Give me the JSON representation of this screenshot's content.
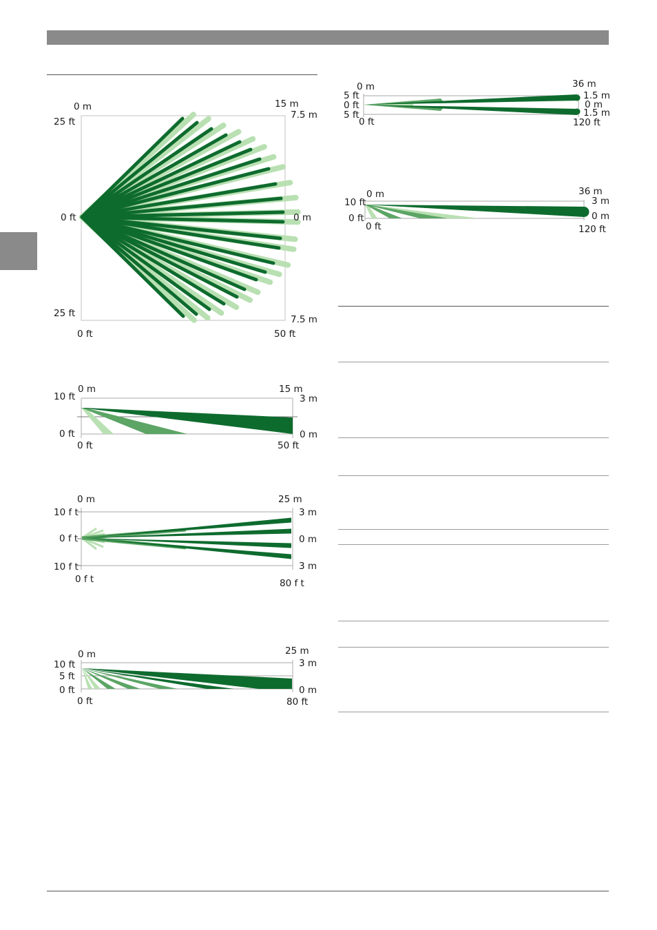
{
  "colors": {
    "dark_green": "#0e6b2e",
    "mid_green": "#5ca565",
    "light_green": "#b9e0b2",
    "header_grey": "#8a8a8a",
    "rule_grey": "#9a9a9a"
  },
  "figures": {
    "wide": {
      "top_left_m": "0 m",
      "top_right_m": "15 m",
      "left_top_ft": "25 ft",
      "left_mid_ft": "0 ft",
      "left_bot_ft": "25 ft",
      "right_top_m": "7.5 m",
      "right_mid_m": "0 m",
      "right_bot_m": "7.5 m",
      "bottom_left_ft": "0 ft",
      "bottom_right_ft": "50 ft"
    },
    "side15": {
      "top_left_m": "0 m",
      "top_right_m": "15 m",
      "left_top_ft": "10 ft",
      "left_bot_ft": "0 ft",
      "right_top_m": "3 m",
      "right_bot_m": "0 m",
      "bottom_left_ft": "0 ft",
      "bottom_right_ft": "50 ft"
    },
    "top25": {
      "top_left_m": "0 m",
      "top_right_m": "25 m",
      "left_top_ft": "10 f t",
      "left_mid_ft": "0 f t",
      "left_bot_ft": "10 f t",
      "right_top_m": "3 m",
      "right_mid_m": "0 m",
      "right_bot_m": "3 m",
      "bottom_left_ft": "0 f t",
      "bottom_right_ft": "80 f t"
    },
    "side25": {
      "top_left_m": "0 m",
      "top_right_m": "25 m",
      "left_top_ft": "10 ft",
      "left_mid_ft": "5 ft",
      "left_bot_ft": "0 ft",
      "right_top_m": "3 m",
      "right_bot_m": "0 m",
      "bottom_left_ft": "0 ft",
      "bottom_right_ft": "80 ft"
    },
    "top36": {
      "top_left_m": "0 m",
      "top_right_m": "36 m",
      "left_top_ft": "5 ft",
      "left_mid_ft": "0 ft",
      "left_bot_ft": "5 ft",
      "right_top_m": "1.5 m",
      "right_mid_m": "0 m",
      "right_bot_m": "1.5 m",
      "bottom_left_ft": "0 ft",
      "bottom_right_ft": "120 ft"
    },
    "side36": {
      "top_left_m": "0 m",
      "top_right_m": "36 m",
      "left_top_ft": "10 ft",
      "left_bot_ft": "0 ft",
      "right_top_m": "3 m",
      "right_bot_m": "0 m",
      "bottom_left_ft": "0 ft",
      "bottom_right_ft": "120 ft"
    }
  }
}
